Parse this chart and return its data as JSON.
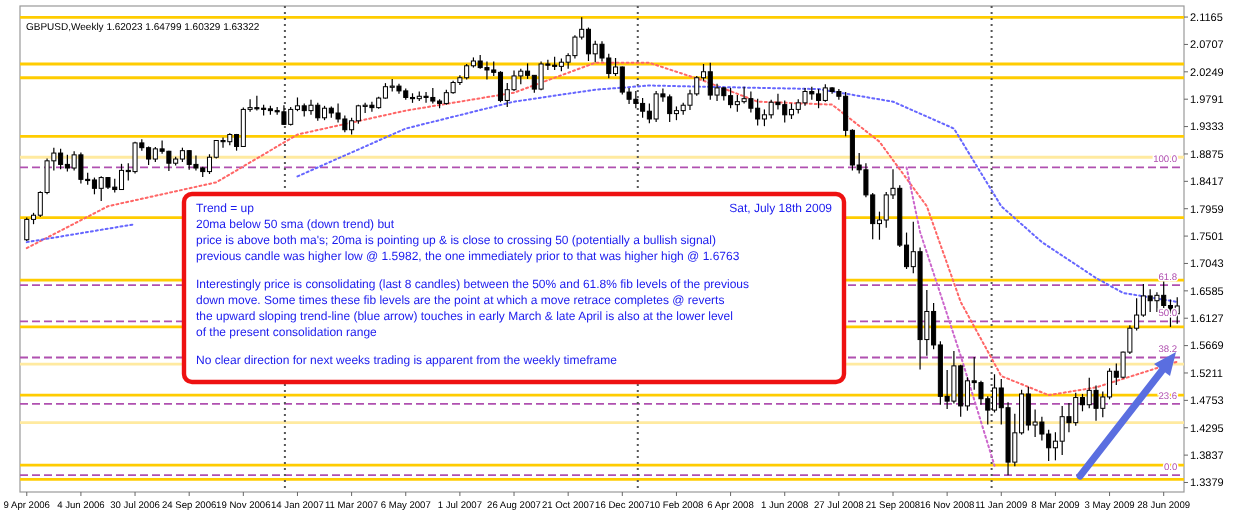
{
  "chart_data": {
    "type": "candlestick",
    "title": "GBPUSD,Weekly  1.62023 1.64799 1.60329 1.63322",
    "color": "#000000",
    "x": [
      "2006-04-09",
      "2006-04-16",
      "2006-04-23",
      "2006-04-30",
      "2006-05-07",
      "2006-05-14",
      "2006-05-21",
      "2006-05-28",
      "2006-06-04",
      "2006-06-11",
      "2006-06-18",
      "2006-06-25",
      "2006-07-02",
      "2006-07-09",
      "2006-07-16",
      "2006-07-23",
      "2006-07-30",
      "2006-08-06",
      "2006-08-13",
      "2006-08-20",
      "2006-08-27",
      "2006-09-03",
      "2006-09-10",
      "2006-09-17",
      "2006-09-24",
      "2006-10-01",
      "2006-10-08",
      "2006-10-15",
      "2006-10-22",
      "2006-10-29",
      "2006-11-05",
      "2006-11-12",
      "2006-11-19",
      "2006-11-26",
      "2006-12-03",
      "2006-12-10",
      "2006-12-17",
      "2006-12-24",
      "2006-12-31",
      "2007-01-07",
      "2007-01-14",
      "2007-01-21",
      "2007-01-28",
      "2007-02-04",
      "2007-02-11",
      "2007-02-18",
      "2007-02-25",
      "2007-03-04",
      "2007-03-11",
      "2007-03-18",
      "2007-03-25",
      "2007-04-01",
      "2007-04-08",
      "2007-04-15",
      "2007-04-22",
      "2007-04-29",
      "2007-05-06",
      "2007-05-13",
      "2007-05-20",
      "2007-05-27",
      "2007-06-03",
      "2007-06-10",
      "2007-06-17",
      "2007-06-24",
      "2007-07-01",
      "2007-07-08",
      "2007-07-15",
      "2007-07-22",
      "2007-07-29",
      "2007-08-05",
      "2007-08-12",
      "2007-08-19",
      "2007-08-26",
      "2007-09-02",
      "2007-09-09",
      "2007-09-16",
      "2007-09-23",
      "2007-09-30",
      "2007-10-07",
      "2007-10-14",
      "2007-10-21",
      "2007-10-28",
      "2007-11-04",
      "2007-11-11",
      "2007-11-18",
      "2007-11-25",
      "2007-12-02",
      "2007-12-09",
      "2007-12-16",
      "2007-12-23",
      "2007-12-30",
      "2008-01-06",
      "2008-01-13",
      "2008-01-20",
      "2008-01-27",
      "2008-02-03",
      "2008-02-10",
      "2008-02-17",
      "2008-02-24",
      "2008-03-02",
      "2008-03-09",
      "2008-03-16",
      "2008-03-23",
      "2008-03-30",
      "2008-04-06",
      "2008-04-13",
      "2008-04-20",
      "2008-04-27",
      "2008-05-04",
      "2008-05-11",
      "2008-05-18",
      "2008-05-25",
      "2008-06-01",
      "2008-06-08",
      "2008-06-15",
      "2008-06-22",
      "2008-06-29",
      "2008-07-06",
      "2008-07-13",
      "2008-07-20",
      "2008-07-27",
      "2008-08-03",
      "2008-08-10",
      "2008-08-17",
      "2008-08-24",
      "2008-08-31",
      "2008-09-07",
      "2008-09-14",
      "2008-09-21",
      "2008-09-28",
      "2008-10-05",
      "2008-10-12",
      "2008-10-19",
      "2008-10-26",
      "2008-11-02",
      "2008-11-09",
      "2008-11-16",
      "2008-11-23",
      "2008-11-30",
      "2008-12-07",
      "2008-12-14",
      "2008-12-21",
      "2008-12-28",
      "2009-01-04",
      "2009-01-11",
      "2009-01-18",
      "2009-01-25",
      "2009-02-01",
      "2009-02-08",
      "2009-02-15",
      "2009-02-22",
      "2009-03-01",
      "2009-03-08",
      "2009-03-15",
      "2009-03-22",
      "2009-03-29",
      "2009-04-05",
      "2009-04-12",
      "2009-04-19",
      "2009-04-26",
      "2009-05-03",
      "2009-05-10",
      "2009-05-17",
      "2009-05-24",
      "2009-05-31",
      "2009-06-07",
      "2009-06-14",
      "2009-06-21",
      "2009-06-28",
      "2009-07-05",
      "2009-07-12"
    ],
    "ohlc": [
      [
        1.744,
        1.781,
        1.742,
        1.778
      ],
      [
        1.778,
        1.789,
        1.77,
        1.785
      ],
      [
        1.785,
        1.825,
        1.782,
        1.823
      ],
      [
        1.823,
        1.88,
        1.82,
        1.876
      ],
      [
        1.876,
        1.898,
        1.86,
        1.889
      ],
      [
        1.889,
        1.896,
        1.862,
        1.87
      ],
      [
        1.87,
        1.886,
        1.858,
        1.864
      ],
      [
        1.864,
        1.892,
        1.86,
        1.886
      ],
      [
        1.886,
        1.89,
        1.838,
        1.845
      ],
      [
        1.845,
        1.856,
        1.836,
        1.844
      ],
      [
        1.844,
        1.848,
        1.82,
        1.83
      ],
      [
        1.83,
        1.85,
        1.809,
        1.848
      ],
      [
        1.848,
        1.849,
        1.829,
        1.832
      ],
      [
        1.832,
        1.846,
        1.823,
        1.828
      ],
      [
        1.828,
        1.871,
        1.828,
        1.86
      ],
      [
        1.86,
        1.872,
        1.843,
        1.858
      ],
      [
        1.858,
        1.908,
        1.855,
        1.906
      ],
      [
        1.906,
        1.912,
        1.893,
        1.898
      ],
      [
        1.898,
        1.9,
        1.869,
        1.879
      ],
      [
        1.879,
        1.899,
        1.874,
        1.896
      ],
      [
        1.896,
        1.91,
        1.888,
        1.892
      ],
      [
        1.892,
        1.893,
        1.859,
        1.872
      ],
      [
        1.872,
        1.883,
        1.868,
        1.879
      ],
      [
        1.879,
        1.898,
        1.874,
        1.893
      ],
      [
        1.893,
        1.894,
        1.861,
        1.87
      ],
      [
        1.87,
        1.885,
        1.86,
        1.864
      ],
      [
        1.864,
        1.866,
        1.849,
        1.858
      ],
      [
        1.858,
        1.887,
        1.854,
        1.882
      ],
      [
        1.882,
        1.911,
        1.88,
        1.91
      ],
      [
        1.91,
        1.915,
        1.898,
        1.908
      ],
      [
        1.908,
        1.922,
        1.902,
        1.92
      ],
      [
        1.92,
        1.921,
        1.893,
        1.9
      ],
      [
        1.9,
        1.965,
        1.9,
        1.962
      ],
      [
        1.962,
        1.979,
        1.958,
        1.965
      ],
      [
        1.965,
        1.985,
        1.96,
        1.964
      ],
      [
        1.964,
        1.97,
        1.952,
        1.963
      ],
      [
        1.963,
        1.968,
        1.953,
        1.96
      ],
      [
        1.96,
        1.966,
        1.953,
        1.958
      ],
      [
        1.958,
        1.969,
        1.936,
        1.937
      ],
      [
        1.937,
        1.966,
        1.935,
        1.962
      ],
      [
        1.962,
        1.982,
        1.959,
        1.968
      ],
      [
        1.968,
        1.972,
        1.95,
        1.96
      ],
      [
        1.96,
        1.978,
        1.953,
        1.969
      ],
      [
        1.969,
        1.973,
        1.943,
        1.948
      ],
      [
        1.948,
        1.968,
        1.944,
        1.964
      ],
      [
        1.964,
        1.967,
        1.948,
        1.956
      ],
      [
        1.956,
        1.972,
        1.94,
        1.946
      ],
      [
        1.946,
        1.952,
        1.924,
        1.928
      ],
      [
        1.928,
        1.948,
        1.92,
        1.943
      ],
      [
        1.943,
        1.97,
        1.938,
        1.968
      ],
      [
        1.968,
        1.973,
        1.956,
        1.969
      ],
      [
        1.969,
        1.975,
        1.958,
        1.965
      ],
      [
        1.965,
        1.983,
        1.963,
        1.981
      ],
      [
        1.981,
        2.006,
        1.98,
        2.0
      ],
      [
        2.0,
        2.013,
        1.992,
        2.001
      ],
      [
        2.001,
        2.005,
        1.988,
        1.993
      ],
      [
        1.993,
        1.997,
        1.978,
        1.982
      ],
      [
        1.982,
        1.989,
        1.973,
        1.98
      ],
      [
        1.98,
        1.992,
        1.976,
        1.984
      ],
      [
        1.984,
        1.991,
        1.973,
        1.982
      ],
      [
        1.982,
        1.998,
        1.972,
        1.976
      ],
      [
        1.976,
        1.979,
        1.964,
        1.972
      ],
      [
        1.972,
        1.995,
        1.97,
        1.99
      ],
      [
        1.99,
        2.01,
        1.988,
        2.007
      ],
      [
        2.007,
        2.019,
        2.003,
        2.015
      ],
      [
        2.015,
        2.038,
        2.012,
        2.035
      ],
      [
        2.035,
        2.049,
        2.032,
        2.043
      ],
      [
        2.043,
        2.053,
        2.03,
        2.032
      ],
      [
        2.032,
        2.042,
        2.012,
        2.028
      ],
      [
        2.028,
        2.042,
        2.018,
        2.024
      ],
      [
        2.024,
        2.026,
        1.974,
        1.977
      ],
      [
        1.977,
        2.006,
        1.966,
        1.995
      ],
      [
        1.995,
        2.027,
        1.993,
        2.018
      ],
      [
        2.018,
        2.03,
        2.004,
        2.026
      ],
      [
        2.026,
        2.039,
        2.013,
        2.019
      ],
      [
        2.019,
        2.019,
        1.99,
        1.996
      ],
      [
        1.996,
        2.042,
        1.994,
        2.038
      ],
      [
        2.038,
        2.045,
        2.028,
        2.036
      ],
      [
        2.036,
        2.05,
        2.028,
        2.034
      ],
      [
        2.034,
        2.047,
        2.026,
        2.041
      ],
      [
        2.041,
        2.056,
        2.03,
        2.052
      ],
      [
        2.052,
        2.086,
        2.047,
        2.083
      ],
      [
        2.083,
        2.1161,
        2.079,
        2.096
      ],
      [
        2.096,
        2.099,
        2.043,
        2.055
      ],
      [
        2.055,
        2.077,
        2.041,
        2.071
      ],
      [
        2.071,
        2.076,
        2.042,
        2.048
      ],
      [
        2.048,
        2.055,
        2.014,
        2.022
      ],
      [
        2.022,
        2.048,
        2.018,
        2.033
      ],
      [
        2.033,
        2.034,
        1.987,
        1.991
      ],
      [
        1.991,
        1.998,
        1.971,
        1.979
      ],
      [
        1.979,
        1.993,
        1.964,
        1.972
      ],
      [
        1.972,
        1.981,
        1.948,
        1.959
      ],
      [
        1.959,
        1.972,
        1.939,
        1.946
      ],
      [
        1.946,
        1.993,
        1.941,
        1.988
      ],
      [
        1.988,
        1.997,
        1.975,
        1.983
      ],
      [
        1.983,
        1.987,
        1.941,
        1.955
      ],
      [
        1.955,
        1.967,
        1.944,
        1.96
      ],
      [
        1.96,
        1.973,
        1.953,
        1.969
      ],
      [
        1.969,
        1.995,
        1.961,
        1.988
      ],
      [
        1.988,
        2.018,
        1.985,
        2.015
      ],
      [
        2.015,
        2.038,
        2.01,
        2.025
      ],
      [
        2.025,
        2.04,
        1.978,
        1.986
      ],
      [
        1.986,
        2.005,
        1.976,
        1.998
      ],
      [
        1.998,
        1.999,
        1.977,
        1.985
      ],
      [
        1.985,
        1.998,
        1.964,
        1.97
      ],
      [
        1.97,
        1.986,
        1.958,
        1.975
      ],
      [
        1.975,
        2.0,
        1.972,
        1.98
      ],
      [
        1.98,
        1.992,
        1.957,
        1.964
      ],
      [
        1.964,
        1.98,
        1.935,
        1.946
      ],
      [
        1.946,
        1.962,
        1.934,
        1.953
      ],
      [
        1.953,
        1.978,
        1.947,
        1.974
      ],
      [
        1.974,
        1.988,
        1.962,
        1.97
      ],
      [
        1.97,
        1.977,
        1.94,
        1.953
      ],
      [
        1.953,
        1.972,
        1.946,
        1.962
      ],
      [
        1.962,
        1.979,
        1.955,
        1.973
      ],
      [
        1.973,
        1.998,
        1.968,
        1.992
      ],
      [
        1.992,
        2.0,
        1.978,
        1.988
      ],
      [
        1.988,
        1.996,
        1.964,
        1.977
      ],
      [
        1.977,
        2.004,
        1.975,
        1.998
      ],
      [
        1.998,
        1.999,
        1.988,
        1.992
      ],
      [
        1.992,
        1.996,
        1.978,
        1.984
      ],
      [
        1.984,
        1.991,
        1.917,
        1.927
      ],
      [
        1.927,
        1.929,
        1.86,
        1.869
      ],
      [
        1.869,
        1.889,
        1.855,
        1.861
      ],
      [
        1.861,
        1.872,
        1.815,
        1.819
      ],
      [
        1.819,
        1.822,
        1.745,
        1.771
      ],
      [
        1.771,
        1.791,
        1.744,
        1.777
      ],
      [
        1.777,
        1.824,
        1.764,
        1.819
      ],
      [
        1.819,
        1.862,
        1.812,
        1.83
      ],
      [
        1.83,
        1.835,
        1.732,
        1.735
      ],
      [
        1.735,
        1.756,
        1.695,
        1.699
      ],
      [
        1.699,
        1.774,
        1.688,
        1.724
      ],
      [
        1.724,
        1.731,
        1.527,
        1.577
      ],
      [
        1.577,
        1.66,
        1.55,
        1.624
      ],
      [
        1.624,
        1.638,
        1.561,
        1.568
      ],
      [
        1.568,
        1.574,
        1.468,
        1.482
      ],
      [
        1.482,
        1.526,
        1.461,
        1.474
      ],
      [
        1.474,
        1.558,
        1.47,
        1.533
      ],
      [
        1.533,
        1.535,
        1.448,
        1.466
      ],
      [
        1.466,
        1.514,
        1.458,
        1.508
      ],
      [
        1.508,
        1.548,
        1.493,
        1.505
      ],
      [
        1.505,
        1.508,
        1.468,
        1.478
      ],
      [
        1.478,
        1.482,
        1.435,
        1.459
      ],
      [
        1.459,
        1.519,
        1.455,
        1.496
      ],
      [
        1.496,
        1.511,
        1.435,
        1.463
      ],
      [
        1.463,
        1.472,
        1.35,
        1.372
      ],
      [
        1.372,
        1.453,
        1.365,
        1.421
      ],
      [
        1.421,
        1.493,
        1.418,
        1.486
      ],
      [
        1.486,
        1.498,
        1.425,
        1.434
      ],
      [
        1.434,
        1.46,
        1.414,
        1.439
      ],
      [
        1.439,
        1.448,
        1.408,
        1.419
      ],
      [
        1.419,
        1.426,
        1.374,
        1.396
      ],
      [
        1.396,
        1.422,
        1.375,
        1.407
      ],
      [
        1.407,
        1.466,
        1.384,
        1.448
      ],
      [
        1.448,
        1.471,
        1.422,
        1.438
      ],
      [
        1.438,
        1.488,
        1.433,
        1.48
      ],
      [
        1.48,
        1.486,
        1.457,
        1.468
      ],
      [
        1.468,
        1.513,
        1.462,
        1.492
      ],
      [
        1.492,
        1.5,
        1.441,
        1.462
      ],
      [
        1.462,
        1.49,
        1.447,
        1.481
      ],
      [
        1.481,
        1.529,
        1.477,
        1.524
      ],
      [
        1.524,
        1.537,
        1.501,
        1.514
      ],
      [
        1.514,
        1.557,
        1.512,
        1.556
      ],
      [
        1.556,
        1.601,
        1.553,
        1.596
      ],
      [
        1.596,
        1.646,
        1.592,
        1.618
      ],
      [
        1.618,
        1.67,
        1.615,
        1.65
      ],
      [
        1.65,
        1.661,
        1.623,
        1.642
      ],
      [
        1.642,
        1.656,
        1.623,
        1.651
      ],
      [
        1.651,
        1.6763,
        1.626,
        1.634
      ],
      [
        1.634,
        1.644,
        1.5982,
        1.62
      ],
      [
        1.62023,
        1.64799,
        1.60329,
        1.63322
      ]
    ],
    "series": [
      {
        "type": "line",
        "color": "#ff6666",
        "line_style": "dotted",
        "x": [
          "2006-04-09",
          "2006-07-02",
          "2006-10-22",
          "2007-01-14",
          "2007-05-06",
          "2007-08-26",
          "2007-11-18",
          "2008-01-13",
          "2008-03-09",
          "2008-05-04",
          "2008-07-20",
          "2008-09-07",
          "2008-10-26",
          "2008-11-30",
          "2009-01-11",
          "2009-03-01",
          "2009-04-19",
          "2009-07-12"
        ],
        "values": [
          1.73,
          1.8,
          1.84,
          1.92,
          1.96,
          1.99,
          2.04,
          2.04,
          2.01,
          1.975,
          1.97,
          1.908,
          1.8,
          1.64,
          1.516,
          1.484,
          1.497,
          1.54
        ]
      },
      {
        "type": "line",
        "color": "#6666ff",
        "line_style": "dotted",
        "x": [
          "2006-04-09",
          "2006-07-30",
          "2006-10-22",
          "2007-01-14",
          "2007-05-06",
          "2007-08-26",
          "2007-11-18",
          "2008-01-13",
          "2008-03-09",
          "2008-07-06",
          "2008-09-21",
          "2008-11-23",
          "2009-01-11",
          "2009-02-22",
          "2009-04-19",
          "2009-05-17",
          "2009-07-12"
        ],
        "values": [
          1.74,
          1.77,
          null,
          1.85,
          1.93,
          1.975,
          1.995,
          2.002,
          2.0,
          1.996,
          1.975,
          1.93,
          1.8,
          1.74,
          1.68,
          1.655,
          1.64
        ]
      },
      {
        "type": "line",
        "color": "#cc66cc",
        "line_style": "dotted",
        "x": [
          "2008-10-05",
          "2008-10-19",
          "2008-11-30",
          "2009-01-04"
        ],
        "values": [
          1.865,
          1.757,
          1.55,
          1.366
        ]
      }
    ],
    "xlim": [
      "2006-04-02",
      "2009-07-19"
    ],
    "xticks": [
      {
        "value": "2006-04-09",
        "label": "9 Apr 2006"
      },
      {
        "value": "2006-06-04",
        "label": "4 Jun 2006"
      },
      {
        "value": "2006-07-30",
        "label": "30 Jul 2006"
      },
      {
        "value": "2006-09-24",
        "label": "24 Sep 2006"
      },
      {
        "value": "2006-11-19",
        "label": "19 Nov 2006"
      },
      {
        "value": "2007-01-14",
        "label": "14 Jan 2007"
      },
      {
        "value": "2007-03-11",
        "label": "11 Mar 2007"
      },
      {
        "value": "2007-05-06",
        "label": "6 May 2007"
      },
      {
        "value": "2007-07-01",
        "label": "1 Jul 2007"
      },
      {
        "value": "2007-08-26",
        "label": "26 Aug 2007"
      },
      {
        "value": "2007-10-21",
        "label": "21 Oct 2007"
      },
      {
        "value": "2007-12-16",
        "label": "16 Dec 2007"
      },
      {
        "value": "2008-02-10",
        "label": "10 Feb 2008"
      },
      {
        "value": "2008-04-06",
        "label": "6 Apr 2008"
      },
      {
        "value": "2008-06-01",
        "label": "1 Jun 2008"
      },
      {
        "value": "2008-07-27",
        "label": "27 Jul 2008"
      },
      {
        "value": "2008-09-21",
        "label": "21 Sep 2008"
      },
      {
        "value": "2008-11-16",
        "label": "16 Nov 2008"
      },
      {
        "value": "2009-01-11",
        "label": "11 Jan 2009"
      },
      {
        "value": "2009-03-08",
        "label": "8 Mar 2009"
      },
      {
        "value": "2009-05-03",
        "label": "3 May 2009"
      },
      {
        "value": "2009-06-28",
        "label": "28 Jun 2009"
      }
    ],
    "ylim": [
      1.322,
      2.135
    ],
    "yticks": [
      1.3379,
      1.3837,
      1.4295,
      1.4753,
      1.5211,
      1.5669,
      1.6127,
      1.6585,
      1.7043,
      1.7501,
      1.7959,
      1.8417,
      1.8875,
      1.9333,
      1.9791,
      2.0249,
      2.0707,
      2.1165
    ],
    "ref_lines": [
      {
        "axis": "y",
        "value": 2.1161,
        "color": "#ffcc00"
      },
      {
        "axis": "y",
        "value": 2.038,
        "color": "#ffcc00"
      },
      {
        "axis": "y",
        "value": 2.015,
        "color": "#ffcc00"
      },
      {
        "axis": "y",
        "value": 1.917,
        "color": "#ffcc00"
      },
      {
        "axis": "y",
        "value": 1.882,
        "color": "#ffeaa0"
      },
      {
        "axis": "y",
        "value": 1.781,
        "color": "#ffcc00"
      },
      {
        "axis": "y",
        "value": 1.6763,
        "color": "#ffcc00"
      },
      {
        "axis": "y",
        "value": 1.5982,
        "color": "#ffcc00"
      },
      {
        "axis": "y",
        "value": 1.536,
        "color": "#ffeaa0"
      },
      {
        "axis": "y",
        "value": 1.484,
        "color": "#ffcc00"
      },
      {
        "axis": "y",
        "value": 1.438,
        "color": "#ffeaa0"
      },
      {
        "axis": "y",
        "value": 1.367,
        "color": "#ffcc00"
      },
      {
        "axis": "y",
        "value": 1.343,
        "color": "#ffcc00"
      },
      {
        "axis": "y",
        "value": 1.865,
        "color": "#b050b0",
        "line_style": "dashed"
      },
      {
        "axis": "y",
        "value": 1.668,
        "color": "#b050b0",
        "line_style": "dashed"
      },
      {
        "axis": "y",
        "value": 1.6075,
        "color": "#b050b0",
        "line_style": "dashed"
      },
      {
        "axis": "y",
        "value": 1.547,
        "color": "#b050b0",
        "line_style": "dashed"
      },
      {
        "axis": "y",
        "value": 1.4695,
        "color": "#b050b0",
        "line_style": "dashed"
      },
      {
        "axis": "y",
        "value": 1.3503,
        "color": "#b050b0",
        "line_style": "dashed"
      },
      {
        "axis": "x",
        "value": "2007-01-01",
        "color": "#555555",
        "line_style": "dotted"
      },
      {
        "axis": "x",
        "value": "2008-01-01",
        "color": "#555555",
        "line_style": "dotted"
      },
      {
        "axis": "x",
        "value": "2009-01-01",
        "color": "#555555",
        "line_style": "dotted"
      }
    ],
    "annotations": [
      {
        "text": "100.0",
        "x": "2009-07-12",
        "y": 1.865
      },
      {
        "text": "61.8",
        "x": "2009-07-12",
        "y": 1.668
      },
      {
        "text": "50.0",
        "x": "2009-07-12",
        "y": 1.6075
      },
      {
        "text": "38.2",
        "x": "2009-07-12",
        "y": 1.547
      },
      {
        "text": "23.6",
        "x": "2009-07-12",
        "y": 1.4695
      },
      {
        "text": "0.0",
        "x": "2009-07-12",
        "y": 1.3503
      },
      "Trend = up",
      "Sat, July 18th 2009",
      "20ma below 50 sma (down trend) but",
      "price is above both ma's; 20ma is pointing up & is close to crossing 50 (potentially a bullish signal)",
      "previous candle was higher low @  1.5982, the one immediately prior to that was higher high @ 1.6763",
      "Interestingly price is consolidating (last 8 candles) between the 50% and 61.8% fib levels of the previous",
      "down move. Some times these fib levels are the point at which a move retrace completes @ reverts",
      "the upward sloping trend-line (blue arrow) touches in early March & late April is also at the lower level",
      "of the present consolidation range",
      "No clear direction for next weeks trading is apparent from the weekly timeframe"
    ],
    "grid": false
  }
}
